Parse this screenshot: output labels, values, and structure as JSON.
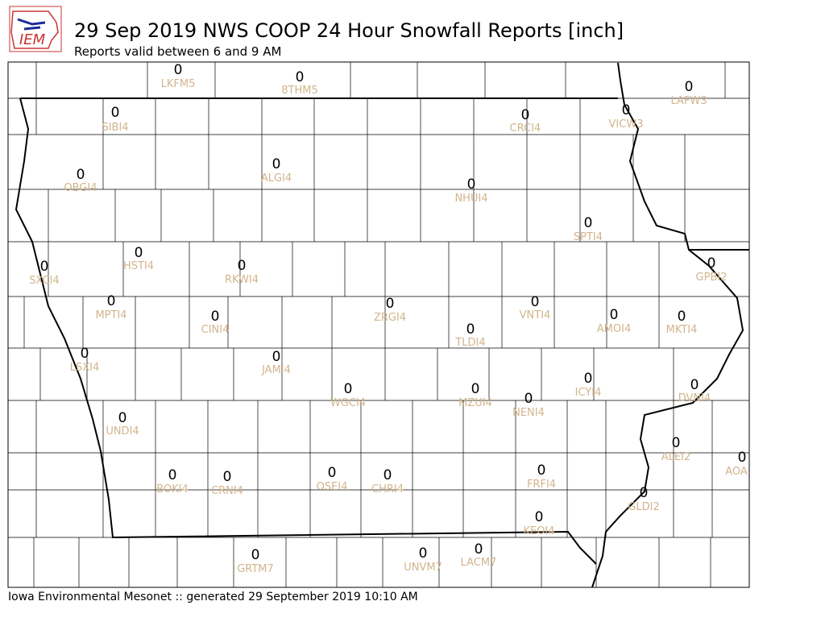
{
  "header": {
    "logo": "IEM",
    "title": "29 Sep 2019 NWS COOP 24 Hour Snowfall Reports [inch]",
    "subtitle": "Reports valid between 6 and 9 AM"
  },
  "reports": [
    {
      "station": "LKFM5",
      "value": 0
    },
    {
      "station": "8THM5",
      "value": 0
    },
    {
      "station": "LAFW3",
      "value": 0
    },
    {
      "station": "SIBI4",
      "value": 0
    },
    {
      "station": "CRCI4",
      "value": 0
    },
    {
      "station": "VICW3",
      "value": 0
    },
    {
      "station": "ALGI4",
      "value": 0
    },
    {
      "station": "OBGI4",
      "value": 0
    },
    {
      "station": "NHUI4",
      "value": 0
    },
    {
      "station": "SPTI4",
      "value": 0
    },
    {
      "station": "HSTI4",
      "value": 0
    },
    {
      "station": "RKWI4",
      "value": 0
    },
    {
      "station": "SXCI4",
      "value": 0
    },
    {
      "station": "GPBI2",
      "value": 0
    },
    {
      "station": "MPTI4",
      "value": 0
    },
    {
      "station": "VNTI4",
      "value": 0
    },
    {
      "station": "ZRGI4",
      "value": 0
    },
    {
      "station": "CINI4",
      "value": 0
    },
    {
      "station": "AMOI4",
      "value": 0
    },
    {
      "station": "MKTI4",
      "value": 0
    },
    {
      "station": "TLDI4",
      "value": 0
    },
    {
      "station": "LSXI4",
      "value": 0
    },
    {
      "station": "JAMI4",
      "value": 0
    },
    {
      "station": "DVNI4",
      "value": 0
    },
    {
      "station": "ICYI4",
      "value": 0
    },
    {
      "station": "WGCI4",
      "value": 0
    },
    {
      "station": "MZUI4",
      "value": 0
    },
    {
      "station": "NENI4",
      "value": 0
    },
    {
      "station": "UNDI4",
      "value": 0
    },
    {
      "station": "ALEI2",
      "value": 0
    },
    {
      "station": "AOA",
      "value": 0
    },
    {
      "station": "BOKI4",
      "value": 0
    },
    {
      "station": "CRNI4",
      "value": 0
    },
    {
      "station": "OSEI4",
      "value": 0
    },
    {
      "station": "CHRI4",
      "value": 0
    },
    {
      "station": "FRFI4",
      "value": 0
    },
    {
      "station": "GLDI2",
      "value": 0
    },
    {
      "station": "KEOI4",
      "value": 0
    },
    {
      "station": "GRTM7",
      "value": 0
    },
    {
      "station": "UNVM7",
      "value": 0
    },
    {
      "station": "LACM7",
      "value": 0
    }
  ],
  "footer": "Iowa Environmental Mesonet :: generated 29 September 2019 10:10 AM"
}
